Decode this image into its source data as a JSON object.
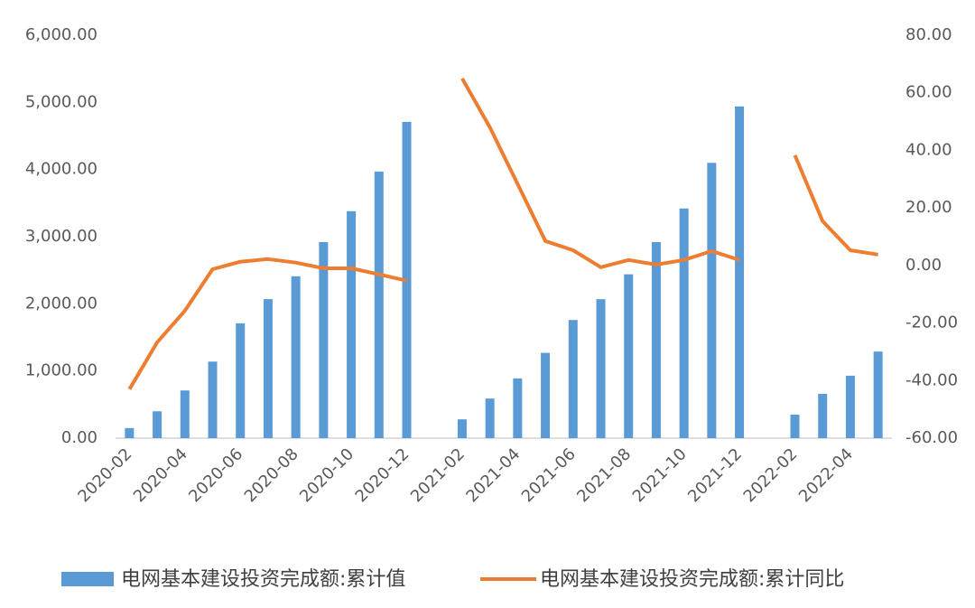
{
  "chart_data": {
    "type": "bar_line",
    "categories": [
      "2020-02",
      null,
      "2020-04",
      null,
      "2020-06",
      null,
      "2020-08",
      null,
      "2020-10",
      null,
      "2020-12",
      null,
      "2021-02",
      null,
      "2021-04",
      null,
      "2021-06",
      null,
      "2021-08",
      null,
      "2021-10",
      null,
      "2021-12",
      null,
      "2022-02",
      null,
      "2022-04",
      null
    ],
    "series": [
      {
        "name": "电网基本建设投资完成额:累计值",
        "type": "bar",
        "color": "#5b9bd5",
        "values": [
          150,
          400,
          710,
          1140,
          1710,
          2070,
          2410,
          2920,
          3380,
          3970,
          4710,
          null,
          280,
          590,
          890,
          1270,
          1760,
          2070,
          2440,
          2920,
          3420,
          4100,
          4940,
          null,
          350,
          660,
          930,
          1290
        ]
      },
      {
        "name": "电网基本建设投资完成额:累计同比",
        "type": "line",
        "axis": "y2",
        "color": "#ed7d31",
        "values": [
          -43,
          -26.7,
          -15.7,
          -1.3,
          1.3,
          2.2,
          1,
          -1,
          -1,
          -3.1,
          -5.3,
          null,
          65,
          48,
          28.3,
          8.5,
          5.3,
          -0.6,
          1.9,
          0.3,
          1.9,
          5,
          1.9,
          null,
          38.3,
          15.4,
          5.3,
          3.8
        ]
      }
    ],
    "ylim": [
      0,
      6000
    ],
    "yticks": [
      {
        "value": 0,
        "label": "0.00"
      },
      {
        "value": 1000,
        "label": "1,000.00"
      },
      {
        "value": 2000,
        "label": "2,000.00"
      },
      {
        "value": 3000,
        "label": "3,000.00"
      },
      {
        "value": 4000,
        "label": "4,000.00"
      },
      {
        "value": 5000,
        "label": "5,000.00"
      },
      {
        "value": 6000,
        "label": "6,000.00"
      }
    ],
    "y2lim": [
      -60,
      80
    ],
    "y2ticks": [
      {
        "value": -60,
        "label": "-60.00"
      },
      {
        "value": -40,
        "label": "-40.00"
      },
      {
        "value": -20,
        "label": "-20.00"
      },
      {
        "value": 0,
        "label": "0.00"
      },
      {
        "value": 20,
        "label": "20.00"
      },
      {
        "value": 40,
        "label": "40.00"
      },
      {
        "value": 60,
        "label": "60.00"
      },
      {
        "value": 80,
        "label": "80.00"
      }
    ],
    "legend": "bottom"
  }
}
